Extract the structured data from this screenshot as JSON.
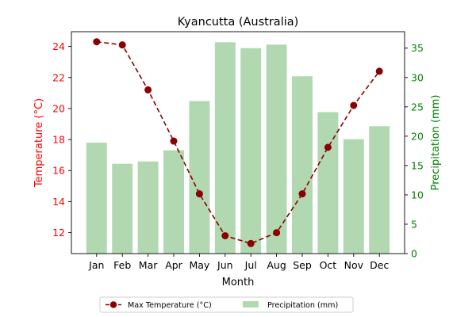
{
  "chart_data": {
    "type": "bar",
    "title": "Kyancutta (Australia)",
    "xlabel": "Month",
    "categories": [
      "Jan",
      "Feb",
      "Mar",
      "Apr",
      "May",
      "Jun",
      "Jul",
      "Aug",
      "Sep",
      "Oct",
      "Nov",
      "Dec"
    ],
    "y_left": {
      "label": "Temperature (°C)",
      "range": [
        10.65,
        24.95
      ],
      "ticks": [
        12,
        14,
        16,
        18,
        20,
        22,
        24
      ],
      "color": "#ff0000"
    },
    "y_right": {
      "label": "Precipitation (mm)",
      "range": [
        0,
        37.8
      ],
      "ticks": [
        0,
        5,
        10,
        15,
        20,
        25,
        30,
        35
      ],
      "color": "#008000"
    },
    "series": [
      {
        "name": "Max Temperature (°C)",
        "kind": "line",
        "axis": "left",
        "style": "dashed",
        "color": "#8b0000",
        "values": [
          24.3,
          24.1,
          21.2,
          17.9,
          14.5,
          11.8,
          11.3,
          12.0,
          14.5,
          17.5,
          20.2,
          22.4
        ]
      },
      {
        "name": "Precipitation (mm)",
        "kind": "bar",
        "axis": "right",
        "color": "#b1d8b1",
        "values": [
          18.9,
          15.3,
          15.7,
          17.6,
          26.0,
          36.0,
          35.0,
          35.6,
          30.2,
          24.1,
          19.5,
          21.7
        ]
      }
    ],
    "legend": {
      "placement": "bottom-center",
      "ncol": 2
    },
    "grid": false
  }
}
